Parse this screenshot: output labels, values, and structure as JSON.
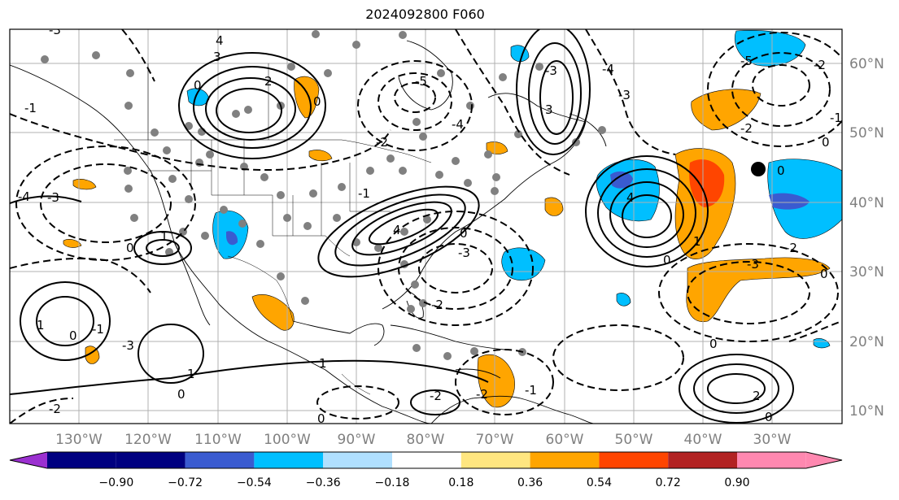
{
  "title": "2024092800 F060",
  "lon_ticks": [
    "130°W",
    "120°W",
    "110°W",
    "100°W",
    "90°W",
    "80°W",
    "70°W",
    "60°W",
    "50°W",
    "40°W",
    "30°W"
  ],
  "lat_ticks": [
    "60°N",
    "50°N",
    "40°N",
    "30°N",
    "20°N",
    "10°N"
  ],
  "colorbar": {
    "labels": [
      "−0.90",
      "−0.72",
      "−0.54",
      "−0.36",
      "−0.18",
      "0.18",
      "0.36",
      "0.54",
      "0.72",
      "0.90"
    ],
    "colors": [
      "#9b30d0",
      "#000080",
      "#3a5bd0",
      "#00bfff",
      "#b0e0ff",
      "#ffffff",
      "#ffe680",
      "#ffa500",
      "#ff4500",
      "#b22222",
      "#ff88b0"
    ]
  },
  "contour_labels": [
    "-4",
    "-3",
    "-3",
    "-1",
    "0",
    "4",
    "3",
    "2",
    "0",
    "-2",
    "-5",
    "-4",
    "-3",
    "-5",
    "0",
    "4",
    "4",
    "-2",
    "-3",
    "-2",
    "0",
    "1",
    "0",
    "1",
    "-4",
    "-3",
    "-2",
    "-1",
    "0",
    "4",
    "3",
    "1",
    "0",
    "-3",
    "-2",
    "0",
    "-3",
    "1",
    "-1",
    "0",
    "-2",
    "0",
    "-2",
    "-1",
    "1",
    "0",
    "2",
    "-2",
    "-1",
    "0",
    "0"
  ],
  "colors": {
    "grid": "#b0b0b0",
    "blue_shade": "#00bfff",
    "orange_shade": "#ffa500",
    "red_shade": "#ff4500",
    "purple_shade": "#3a5bd0",
    "station_marker": "#808080"
  }
}
